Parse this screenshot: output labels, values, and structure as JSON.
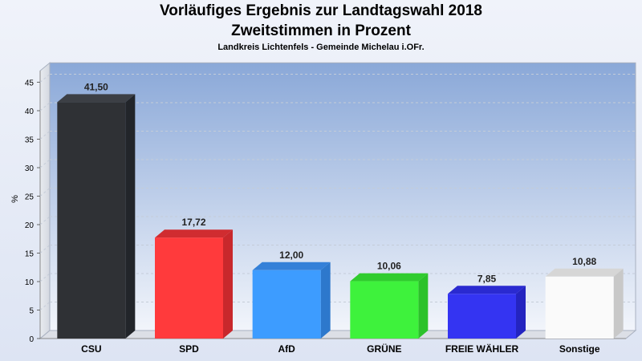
{
  "chart_data": {
    "type": "bar",
    "title": "Vorläufiges Ergebnis zur Landtagswahl 2018",
    "subtitle": "Zweitstimmen in Prozent",
    "caption": "Landkreis Lichtenfels - Gemeinde Michelau i.OFr.",
    "ylabel": "%",
    "xlabel": "",
    "ylim": [
      0,
      47
    ],
    "yticks": [
      0,
      5,
      10,
      15,
      20,
      25,
      30,
      35,
      40,
      45
    ],
    "grid": true,
    "categories": [
      "CSU",
      "SPD",
      "AfD",
      "GRÜNE",
      "FREIE WÄHLER",
      "Sonstige"
    ],
    "values": [
      41.5,
      17.72,
      12.0,
      10.06,
      7.85,
      10.88
    ],
    "value_labels": [
      "41,50",
      "17,72",
      "12,00",
      "10,06",
      "7,85",
      "10,88"
    ],
    "colors": [
      "#2f3135",
      "#ff3a3c",
      "#3d9cff",
      "#3ef23c",
      "#3434f2",
      "#fafafa"
    ],
    "side_colors": [
      "#22252a",
      "#c8282c",
      "#2d78cc",
      "#2cc22a",
      "#2424c0",
      "#c8c8c8"
    ],
    "top_colors": [
      "#3c3f45",
      "#d02c30",
      "#3480d8",
      "#30cc2e",
      "#2a2ad0",
      "#d6d6d6"
    ]
  }
}
